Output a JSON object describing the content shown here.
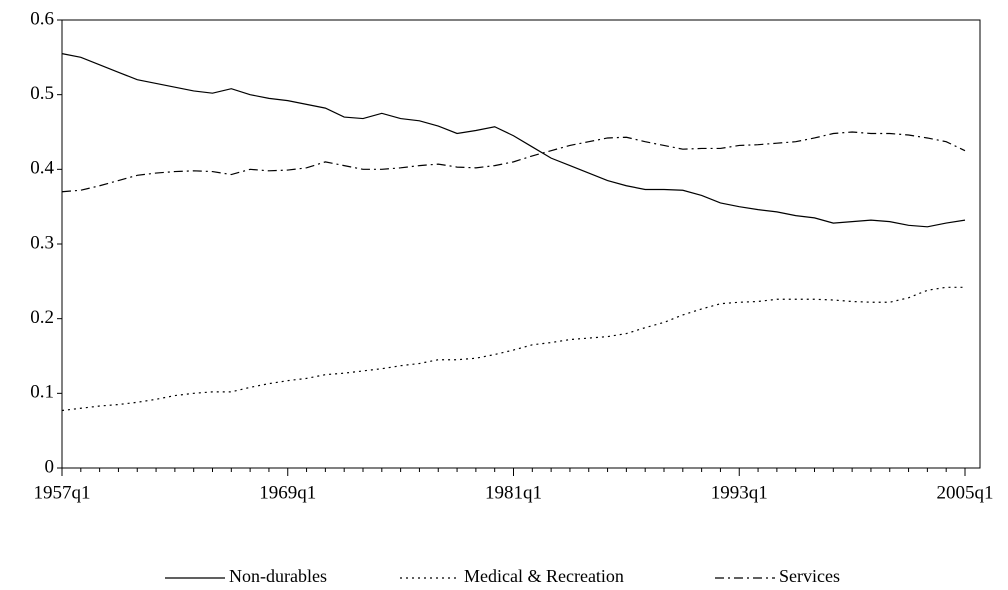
{
  "chart_data": {
    "type": "line",
    "categories": [
      "1957q1",
      null,
      null,
      null,
      null,
      null,
      null,
      null,
      null,
      null,
      null,
      null,
      "1969q1",
      null,
      null,
      null,
      null,
      null,
      null,
      null,
      null,
      null,
      null,
      null,
      "1981q1",
      null,
      null,
      null,
      null,
      null,
      null,
      null,
      null,
      null,
      null,
      null,
      "1993q1",
      null,
      null,
      null,
      null,
      null,
      null,
      null,
      null,
      null,
      null,
      null,
      "2005q1"
    ],
    "series": [
      {
        "name": "Non-durables",
        "color": "#000000",
        "dash": "solid",
        "values": [
          0.555,
          0.55,
          0.54,
          0.53,
          0.52,
          0.515,
          0.51,
          0.505,
          0.502,
          0.508,
          0.5,
          0.495,
          0.492,
          0.487,
          0.482,
          0.47,
          0.468,
          0.475,
          0.468,
          0.465,
          0.458,
          0.448,
          0.452,
          0.457,
          0.445,
          0.43,
          0.415,
          0.405,
          0.395,
          0.385,
          0.378,
          0.373,
          0.373,
          0.372,
          0.365,
          0.355,
          0.35,
          0.346,
          0.343,
          0.338,
          0.335,
          0.328,
          0.33,
          0.332,
          0.33,
          0.325,
          0.323,
          0.328,
          0.332
        ]
      },
      {
        "name": "Medical & Recreation",
        "color": "#000000",
        "dash": "dotted",
        "values": [
          0.077,
          0.08,
          0.083,
          0.085,
          0.088,
          0.092,
          0.097,
          0.1,
          0.102,
          0.102,
          0.108,
          0.113,
          0.117,
          0.12,
          0.125,
          0.127,
          0.13,
          0.133,
          0.137,
          0.14,
          0.145,
          0.145,
          0.147,
          0.152,
          0.158,
          0.165,
          0.168,
          0.172,
          0.174,
          0.176,
          0.18,
          0.188,
          0.195,
          0.205,
          0.213,
          0.22,
          0.222,
          0.223,
          0.226,
          0.226,
          0.226,
          0.225,
          0.223,
          0.222,
          0.222,
          0.228,
          0.238,
          0.242,
          0.242
        ]
      },
      {
        "name": "Services",
        "color": "#000000",
        "dash": "dashdot",
        "values": [
          0.37,
          0.372,
          0.378,
          0.385,
          0.392,
          0.395,
          0.397,
          0.398,
          0.397,
          0.393,
          0.4,
          0.398,
          0.399,
          0.402,
          0.41,
          0.405,
          0.4,
          0.4,
          0.402,
          0.405,
          0.407,
          0.403,
          0.402,
          0.405,
          0.41,
          0.418,
          0.425,
          0.432,
          0.437,
          0.442,
          0.443,
          0.437,
          0.432,
          0.427,
          0.428,
          0.428,
          0.432,
          0.433,
          0.435,
          0.437,
          0.442,
          0.448,
          0.45,
          0.448,
          0.448,
          0.446,
          0.442,
          0.437,
          0.425
        ]
      }
    ],
    "ylim": [
      0,
      0.6
    ],
    "yticks": [
      0,
      0.1,
      0.2,
      0.3,
      0.4,
      0.5,
      0.6
    ],
    "grid": false,
    "legend": "bottom"
  }
}
